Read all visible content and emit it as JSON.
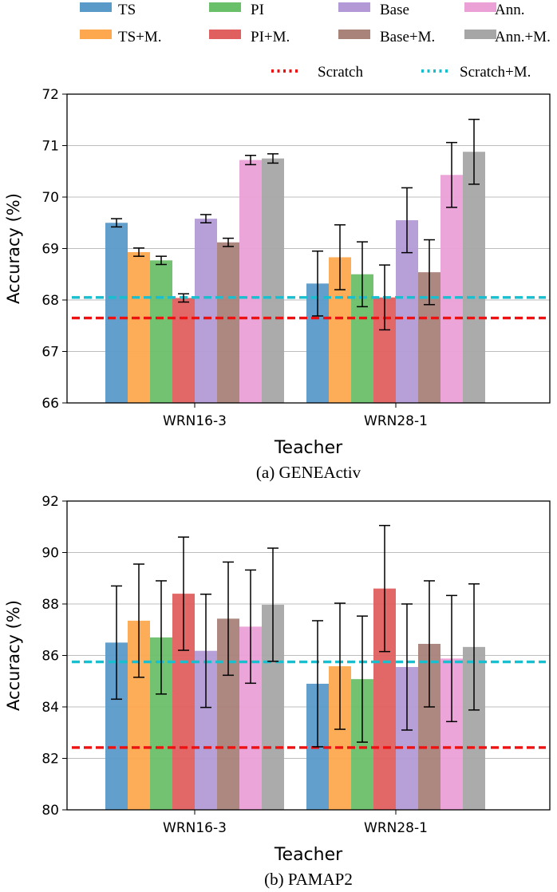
{
  "legend": {
    "items": [
      {
        "label": "TS",
        "color": "#5a9ac9",
        "kind": "patch"
      },
      {
        "label": "PI",
        "color": "#6abf69",
        "kind": "patch"
      },
      {
        "label": "Base",
        "color": "#b39ad6",
        "kind": "patch"
      },
      {
        "label": "Ann.",
        "color": "#eba0d6",
        "kind": "patch"
      },
      {
        "label": "TS+M.",
        "color": "#fda84e",
        "kind": "patch"
      },
      {
        "label": "PI+M.",
        "color": "#e06060",
        "kind": "patch"
      },
      {
        "label": "Base+M.",
        "color": "#a98279",
        "kind": "patch"
      },
      {
        "label": "Ann.+M.",
        "color": "#a6a6a6",
        "kind": "patch"
      },
      {
        "label": "Scratch",
        "color": "#ee1111",
        "kind": "dotted"
      },
      {
        "label": "Scratch+M.",
        "color": "#17bfcf",
        "kind": "dotted"
      }
    ]
  },
  "colors": {
    "series": [
      "#5a9ac9",
      "#fda84e",
      "#6abf69",
      "#e06060",
      "#b39ad6",
      "#a98279",
      "#eba0d6",
      "#a6a6a6"
    ],
    "scratch": "#ee1111",
    "scratch_m": "#17bfcf",
    "grid": "#bdbdbd",
    "errorbar": "#000000"
  },
  "chart_data": [
    {
      "type": "bar",
      "caption": "(a) GENEActiv",
      "xlabel": "Teacher",
      "ylabel": "Accuracy (%)",
      "ylim": [
        66,
        72
      ],
      "yticks": [
        "66",
        "67",
        "68",
        "69",
        "70",
        "71",
        "72"
      ],
      "categories": [
        "WRN16-3",
        "WRN28-1"
      ],
      "grid": true,
      "series": [
        {
          "name": "TS",
          "values": [
            69.5,
            68.32
          ],
          "errors": [
            0.08,
            0.63
          ]
        },
        {
          "name": "TS+M.",
          "values": [
            68.93,
            68.83
          ],
          "errors": [
            0.08,
            0.63
          ]
        },
        {
          "name": "PI",
          "values": [
            68.77,
            68.5
          ],
          "errors": [
            0.08,
            0.63
          ]
        },
        {
          "name": "PI+M.",
          "values": [
            68.04,
            68.05
          ],
          "errors": [
            0.08,
            0.63
          ]
        },
        {
          "name": "Base",
          "values": [
            69.58,
            69.55
          ],
          "errors": [
            0.08,
            0.63
          ]
        },
        {
          "name": "Base+M.",
          "values": [
            69.12,
            68.54
          ],
          "errors": [
            0.08,
            0.63
          ]
        },
        {
          "name": "Ann.",
          "values": [
            70.72,
            70.43
          ],
          "errors": [
            0.09,
            0.63
          ]
        },
        {
          "name": "Ann.+M.",
          "values": [
            70.75,
            70.88
          ],
          "errors": [
            0.09,
            0.63
          ]
        }
      ],
      "reference_lines": [
        {
          "name": "Scratch",
          "value": 67.65
        },
        {
          "name": "Scratch+M.",
          "value": 68.05
        }
      ]
    },
    {
      "type": "bar",
      "caption": "(b) PAMAP2",
      "xlabel": "Teacher",
      "ylabel": "Accuracy (%)",
      "ylim": [
        80,
        92
      ],
      "yticks": [
        "80",
        "82",
        "84",
        "86",
        "88",
        "90",
        "92"
      ],
      "categories": [
        "WRN16-3",
        "WRN28-1"
      ],
      "grid": true,
      "series": [
        {
          "name": "TS",
          "values": [
            86.5,
            84.9
          ],
          "errors": [
            2.2,
            2.45
          ]
        },
        {
          "name": "TS+M.",
          "values": [
            87.35,
            85.58
          ],
          "errors": [
            2.2,
            2.45
          ]
        },
        {
          "name": "PI",
          "values": [
            86.7,
            85.08
          ],
          "errors": [
            2.2,
            2.45
          ]
        },
        {
          "name": "PI+M.",
          "values": [
            88.4,
            88.6
          ],
          "errors": [
            2.2,
            2.45
          ]
        },
        {
          "name": "Base",
          "values": [
            86.18,
            85.55
          ],
          "errors": [
            2.2,
            2.45
          ]
        },
        {
          "name": "Base+M.",
          "values": [
            87.43,
            86.45
          ],
          "errors": [
            2.2,
            2.45
          ]
        },
        {
          "name": "Ann.",
          "values": [
            87.12,
            85.88
          ],
          "errors": [
            2.2,
            2.45
          ]
        },
        {
          "name": "Ann.+M.",
          "values": [
            87.97,
            86.33
          ],
          "errors": [
            2.2,
            2.45
          ]
        }
      ],
      "reference_lines": [
        {
          "name": "Scratch",
          "value": 82.42
        },
        {
          "name": "Scratch+M.",
          "value": 85.75
        }
      ]
    }
  ]
}
